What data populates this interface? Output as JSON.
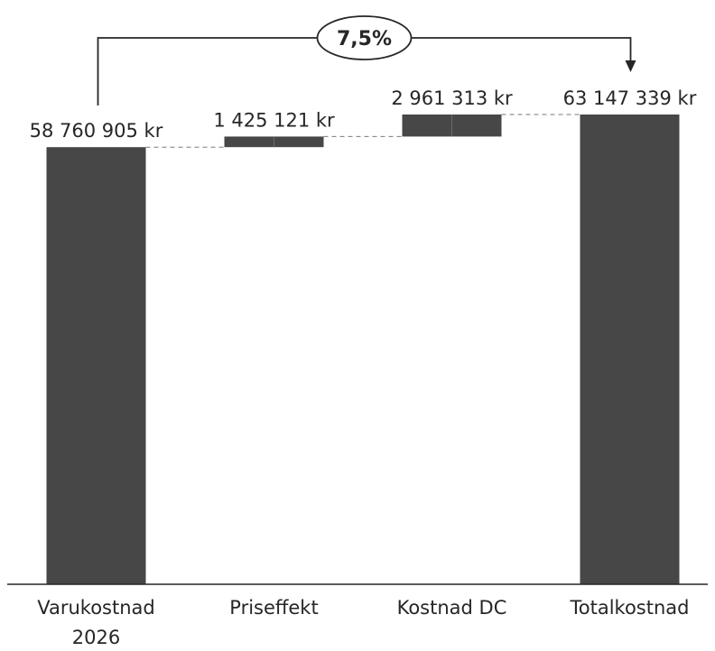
{
  "chart_data": {
    "type": "waterfall",
    "title": "",
    "xlabel": "",
    "ylabel": "",
    "grid": false,
    "legend": "none",
    "ylim": [
      0,
      63147339
    ],
    "bar_color": "#474747",
    "categories": [
      [
        "Varukostnad",
        "2026"
      ],
      [
        "Priseffekt"
      ],
      [
        "Kostnad DC"
      ],
      [
        "Totalkostnad"
      ]
    ],
    "bars": [
      {
        "kind": "total",
        "start": 0,
        "value": 58760905,
        "label": "58 760 905 kr"
      },
      {
        "kind": "delta",
        "start": 58760905,
        "value": 1425121,
        "label": "1 425 121 kr"
      },
      {
        "kind": "delta",
        "start": 60186026,
        "value": 2961313,
        "label": "2 961 313 kr"
      },
      {
        "kind": "total",
        "start": 0,
        "value": 63147339,
        "label": "63 147 339 kr"
      }
    ],
    "growth_annotation": {
      "label": "7,5%",
      "from_index": 0,
      "to_index": 3
    }
  }
}
